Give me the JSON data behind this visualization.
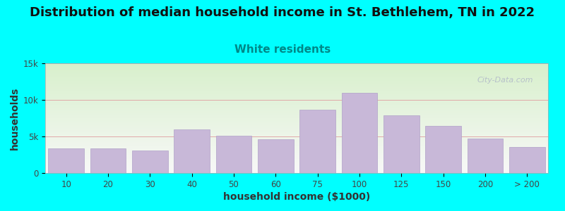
{
  "title": "Distribution of median household income in St. Bethlehem, TN in 2022",
  "subtitle": "White residents",
  "xlabel": "household income ($1000)",
  "ylabel": "households",
  "background_color": "#00FFFF",
  "plot_bg_gradient_top": "#d8f0cc",
  "plot_bg_gradient_bottom": "#f8f8f8",
  "bar_color": "#c8b8d8",
  "bar_edge_color": "#b0a0c8",
  "grid_color": "#e0a8a8",
  "categories": [
    "10",
    "20",
    "30",
    "40",
    "50",
    "60",
    "75",
    "100",
    "125",
    "150",
    "200",
    "> 200"
  ],
  "values": [
    3400,
    3400,
    3100,
    6000,
    5100,
    4600,
    8700,
    11000,
    7900,
    6400,
    4700,
    3600
  ],
  "ylim": [
    0,
    15000
  ],
  "yticks": [
    0,
    5000,
    10000,
    15000
  ],
  "ytick_labels": [
    "0",
    "5k",
    "10k",
    "15k"
  ],
  "title_fontsize": 13,
  "subtitle_fontsize": 11,
  "subtitle_color": "#008888",
  "axis_label_fontsize": 10,
  "tick_fontsize": 8.5,
  "title_color": "#111111",
  "watermark_text": "City-Data.com",
  "watermark_color": "#b0b8c8"
}
